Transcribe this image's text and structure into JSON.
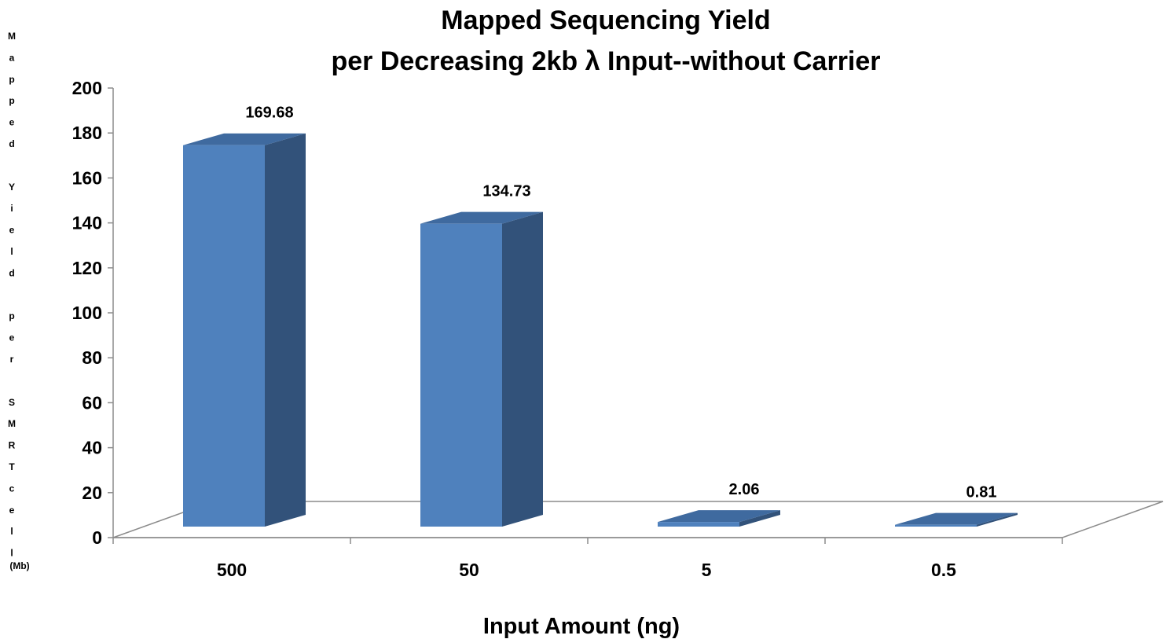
{
  "chart_data": {
    "type": "bar",
    "title_lines": [
      "Mapped Sequencing Yield",
      "per Decreasing 2kb λ Input--without Carrier"
    ],
    "xlabel": "Input Amount (ng)",
    "ylabel": "Mapped Yield per SMRTcell (Mb)",
    "categories": [
      "500",
      "50",
      "5",
      "0.5"
    ],
    "values": [
      169.68,
      134.73,
      2.06,
      0.81
    ],
    "data_labels": [
      "169.68",
      "134.73",
      "2.06",
      "0.81"
    ],
    "ylim": [
      0,
      200
    ],
    "yticks": [
      0,
      20,
      40,
      60,
      80,
      100,
      120,
      140,
      160,
      180,
      200
    ],
    "grid": false,
    "style": "3d-column",
    "colors": {
      "front": "#4f81bd",
      "side": "#32527a",
      "top": "#3f6a9f"
    }
  }
}
